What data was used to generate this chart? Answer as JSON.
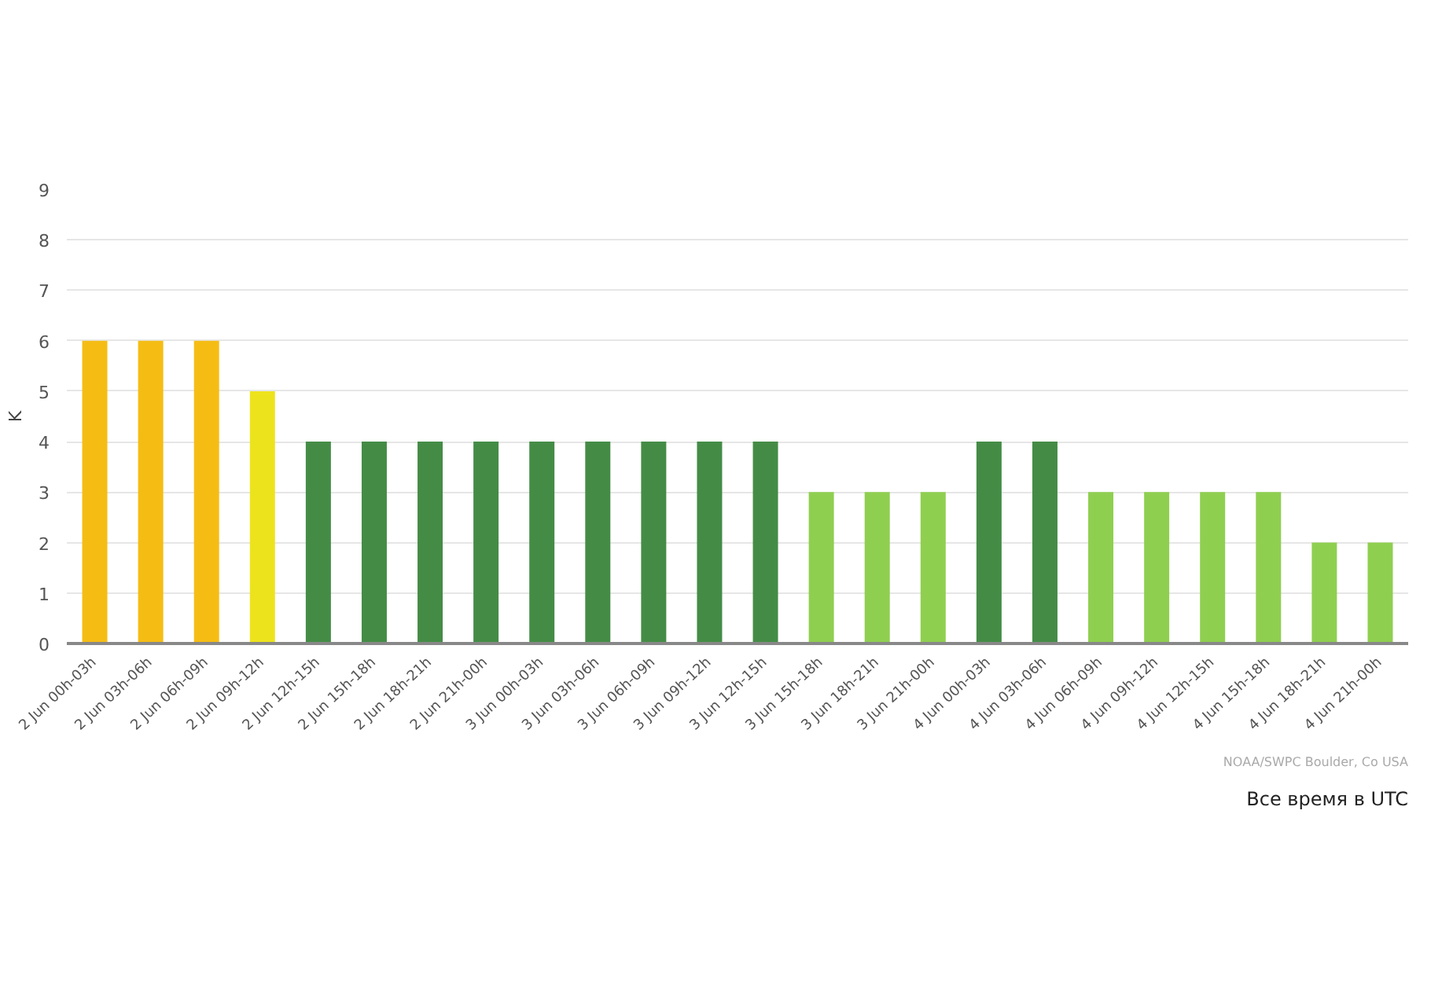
{
  "chart_data": {
    "type": "bar",
    "categories": [
      "2 Jun 00h-03h",
      "2 Jun 03h-06h",
      "2 Jun 06h-09h",
      "2 Jun 09h-12h",
      "2 Jun 12h-15h",
      "2 Jun 15h-18h",
      "2 Jun 18h-21h",
      "2 Jun 21h-00h",
      "3 Jun 00h-03h",
      "3 Jun 03h-06h",
      "3 Jun 06h-09h",
      "3 Jun 09h-12h",
      "3 Jun 12h-15h",
      "3 Jun 15h-18h",
      "3 Jun 18h-21h",
      "3 Jun 21h-00h",
      "4 Jun 00h-03h",
      "4 Jun 03h-06h",
      "4 Jun 06h-09h",
      "4 Jun 09h-12h",
      "4 Jun 12h-15h",
      "4 Jun 15h-18h",
      "4 Jun 18h-21h",
      "4 Jun 21h-00h"
    ],
    "values": [
      6,
      6,
      6,
      5,
      4,
      4,
      4,
      4,
      4,
      4,
      4,
      4,
      4,
      3,
      3,
      3,
      4,
      4,
      3,
      3,
      3,
      3,
      2,
      2
    ],
    "colors": [
      "#f5bd14",
      "#f5bd14",
      "#f5bd14",
      "#ede31c",
      "#448c46",
      "#448c46",
      "#448c46",
      "#448c46",
      "#448c46",
      "#448c46",
      "#448c46",
      "#448c46",
      "#448c46",
      "#8fcf50",
      "#8fcf50",
      "#8fcf50",
      "#448c46",
      "#448c46",
      "#8fcf50",
      "#8fcf50",
      "#8fcf50",
      "#8fcf50",
      "#8fcf50",
      "#8fcf50"
    ],
    "ylabel": "K",
    "xlabel": "Все время в UTC",
    "ylim": [
      0,
      9
    ],
    "yticks": [
      0,
      1,
      2,
      3,
      4,
      5,
      6,
      7,
      8,
      9
    ],
    "grid": "y",
    "annotations": [
      "NOAA/SWPC Boulder, Co USA"
    ]
  }
}
